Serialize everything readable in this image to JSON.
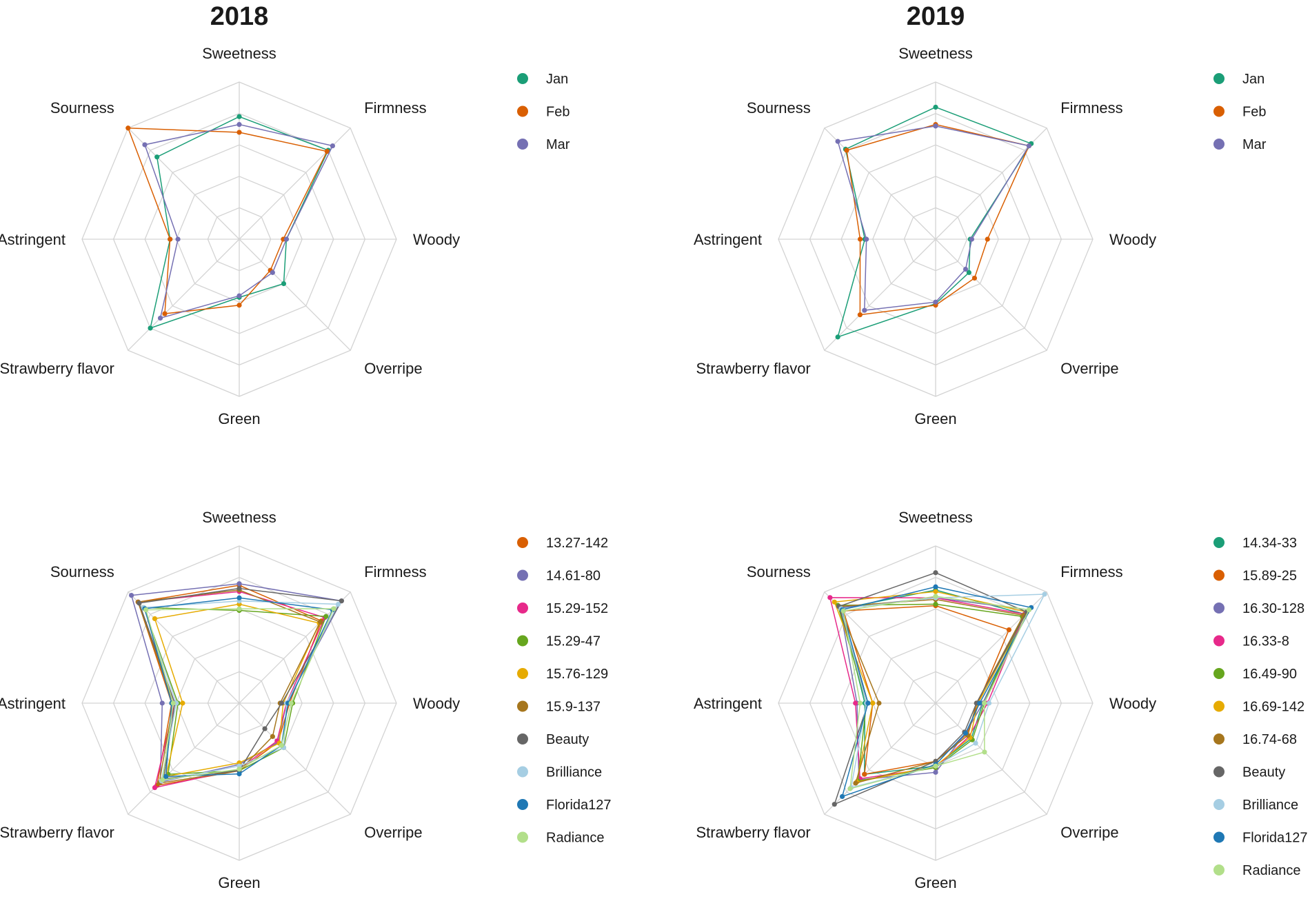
{
  "titles": {
    "left": "2018",
    "right": "2019"
  },
  "chart_data": [
    {
      "type": "radar",
      "panel": "top-left",
      "title": "2018",
      "axes": [
        "Sweetness",
        "Firmness",
        "Woody",
        "Overripe",
        "Green",
        "Strawberry flavor",
        "Astringent",
        "Sourness"
      ],
      "rmax": 1,
      "grid_levels": 5,
      "series": [
        {
          "name": "Jan",
          "color": "#1b9e77",
          "values": [
            0.78,
            0.8,
            0.3,
            0.4,
            0.37,
            0.8,
            0.44,
            0.74
          ]
        },
        {
          "name": "Feb",
          "color": "#d95f02",
          "values": [
            0.68,
            0.79,
            0.28,
            0.28,
            0.42,
            0.67,
            0.44,
            1.0
          ]
        },
        {
          "name": "Mar",
          "color": "#7570b3",
          "values": [
            0.73,
            0.84,
            0.3,
            0.3,
            0.36,
            0.71,
            0.39,
            0.85
          ]
        }
      ]
    },
    {
      "type": "radar",
      "panel": "top-right",
      "title": "2019",
      "axes": [
        "Sweetness",
        "Firmness",
        "Woody",
        "Overripe",
        "Green",
        "Strawberry flavor",
        "Astringent",
        "Sourness"
      ],
      "rmax": 1,
      "grid_levels": 5,
      "series": [
        {
          "name": "Jan",
          "color": "#1b9e77",
          "values": [
            0.84,
            0.86,
            0.22,
            0.3,
            0.41,
            0.88,
            0.45,
            0.81
          ]
        },
        {
          "name": "Feb",
          "color": "#d95f02",
          "values": [
            0.73,
            0.84,
            0.33,
            0.35,
            0.42,
            0.68,
            0.48,
            0.8
          ]
        },
        {
          "name": "Mar",
          "color": "#7570b3",
          "values": [
            0.72,
            0.84,
            0.23,
            0.27,
            0.4,
            0.64,
            0.44,
            0.88
          ]
        }
      ]
    },
    {
      "type": "radar",
      "panel": "bottom-left",
      "axes": [
        "Sweetness",
        "Firmness",
        "Woody",
        "Overripe",
        "Green",
        "Strawberry flavor",
        "Astringent",
        "Sourness"
      ],
      "rmax": 1,
      "grid_levels": 5,
      "series": [
        {
          "name": "13.27-142",
          "color": "#d95f02",
          "values": [
            0.75,
            0.74,
            0.32,
            0.35,
            0.43,
            0.74,
            0.43,
            0.91
          ]
        },
        {
          "name": "14.61-80",
          "color": "#7570b3",
          "values": [
            0.76,
            0.92,
            0.3,
            0.35,
            0.39,
            0.71,
            0.49,
            0.97
          ]
        },
        {
          "name": "15.29-152",
          "color": "#e7298a",
          "values": [
            0.71,
            0.77,
            0.3,
            0.34,
            0.42,
            0.76,
            0.41,
            0.91
          ]
        },
        {
          "name": "15.29-47",
          "color": "#66a61e",
          "values": [
            0.59,
            0.78,
            0.34,
            0.4,
            0.43,
            0.64,
            0.39,
            0.86
          ]
        },
        {
          "name": "15.76-129",
          "color": "#e6ab02",
          "values": [
            0.63,
            0.72,
            0.28,
            0.36,
            0.38,
            0.66,
            0.36,
            0.76
          ]
        },
        {
          "name": "15.9-137",
          "color": "#a6761d",
          "values": [
            0.72,
            0.73,
            0.26,
            0.3,
            0.43,
            0.72,
            0.42,
            0.91
          ]
        },
        {
          "name": "Beauty",
          "color": "#666666",
          "values": [
            0.73,
            0.92,
            0.27,
            0.23,
            0.43,
            0.68,
            0.41,
            0.9
          ]
        },
        {
          "name": "Brilliance",
          "color": "#a6cee3",
          "values": [
            0.65,
            0.89,
            0.3,
            0.4,
            0.4,
            0.7,
            0.4,
            0.86
          ]
        },
        {
          "name": "Florida127",
          "color": "#1f78b4",
          "values": [
            0.67,
            0.84,
            0.31,
            0.38,
            0.45,
            0.66,
            0.43,
            0.85
          ]
        },
        {
          "name": "Radiance",
          "color": "#b2df8a",
          "values": [
            0.6,
            0.85,
            0.33,
            0.38,
            0.42,
            0.69,
            0.42,
            0.84
          ]
        }
      ]
    },
    {
      "type": "radar",
      "panel": "bottom-right",
      "axes": [
        "Sweetness",
        "Firmness",
        "Woody",
        "Overripe",
        "Green",
        "Strawberry flavor",
        "Astringent",
        "Sourness"
      ],
      "rmax": 1,
      "grid_levels": 5,
      "series": [
        {
          "name": "14.34-33",
          "color": "#1b9e77",
          "values": [
            0.72,
            0.8,
            0.3,
            0.32,
            0.4,
            0.64,
            0.45,
            0.85
          ]
        },
        {
          "name": "15.89-25",
          "color": "#d95f02",
          "values": [
            0.62,
            0.66,
            0.27,
            0.28,
            0.37,
            0.64,
            0.4,
            0.83
          ]
        },
        {
          "name": "16.30-128",
          "color": "#7570b3",
          "values": [
            0.67,
            0.84,
            0.3,
            0.27,
            0.44,
            0.69,
            0.5,
            0.86
          ]
        },
        {
          "name": "16.33-8",
          "color": "#e7298a",
          "values": [
            0.67,
            0.8,
            0.33,
            0.3,
            0.41,
            0.68,
            0.51,
            0.95
          ]
        },
        {
          "name": "16.49-90",
          "color": "#66a61e",
          "values": [
            0.63,
            0.78,
            0.31,
            0.33,
            0.41,
            0.7,
            0.44,
            0.88
          ]
        },
        {
          "name": "16.69-142",
          "color": "#e6ab02",
          "values": [
            0.71,
            0.82,
            0.27,
            0.31,
            0.4,
            0.71,
            0.4,
            0.91
          ]
        },
        {
          "name": "16.74-68",
          "color": "#a6761d",
          "values": [
            0.66,
            0.79,
            0.26,
            0.29,
            0.37,
            0.72,
            0.36,
            0.87
          ]
        },
        {
          "name": "Beauty",
          "color": "#666666",
          "values": [
            0.83,
            0.82,
            0.26,
            0.26,
            0.37,
            0.91,
            0.43,
            0.87
          ]
        },
        {
          "name": "Brilliance",
          "color": "#a6cee3",
          "values": [
            0.67,
            0.98,
            0.34,
            0.36,
            0.4,
            0.76,
            0.44,
            0.85
          ]
        },
        {
          "name": "Florida127",
          "color": "#1f78b4",
          "values": [
            0.74,
            0.86,
            0.28,
            0.27,
            0.39,
            0.84,
            0.43,
            0.84
          ]
        },
        {
          "name": "Radiance",
          "color": "#b2df8a",
          "values": [
            0.68,
            0.84,
            0.31,
            0.44,
            0.4,
            0.77,
            0.48,
            0.83
          ]
        }
      ]
    }
  ]
}
